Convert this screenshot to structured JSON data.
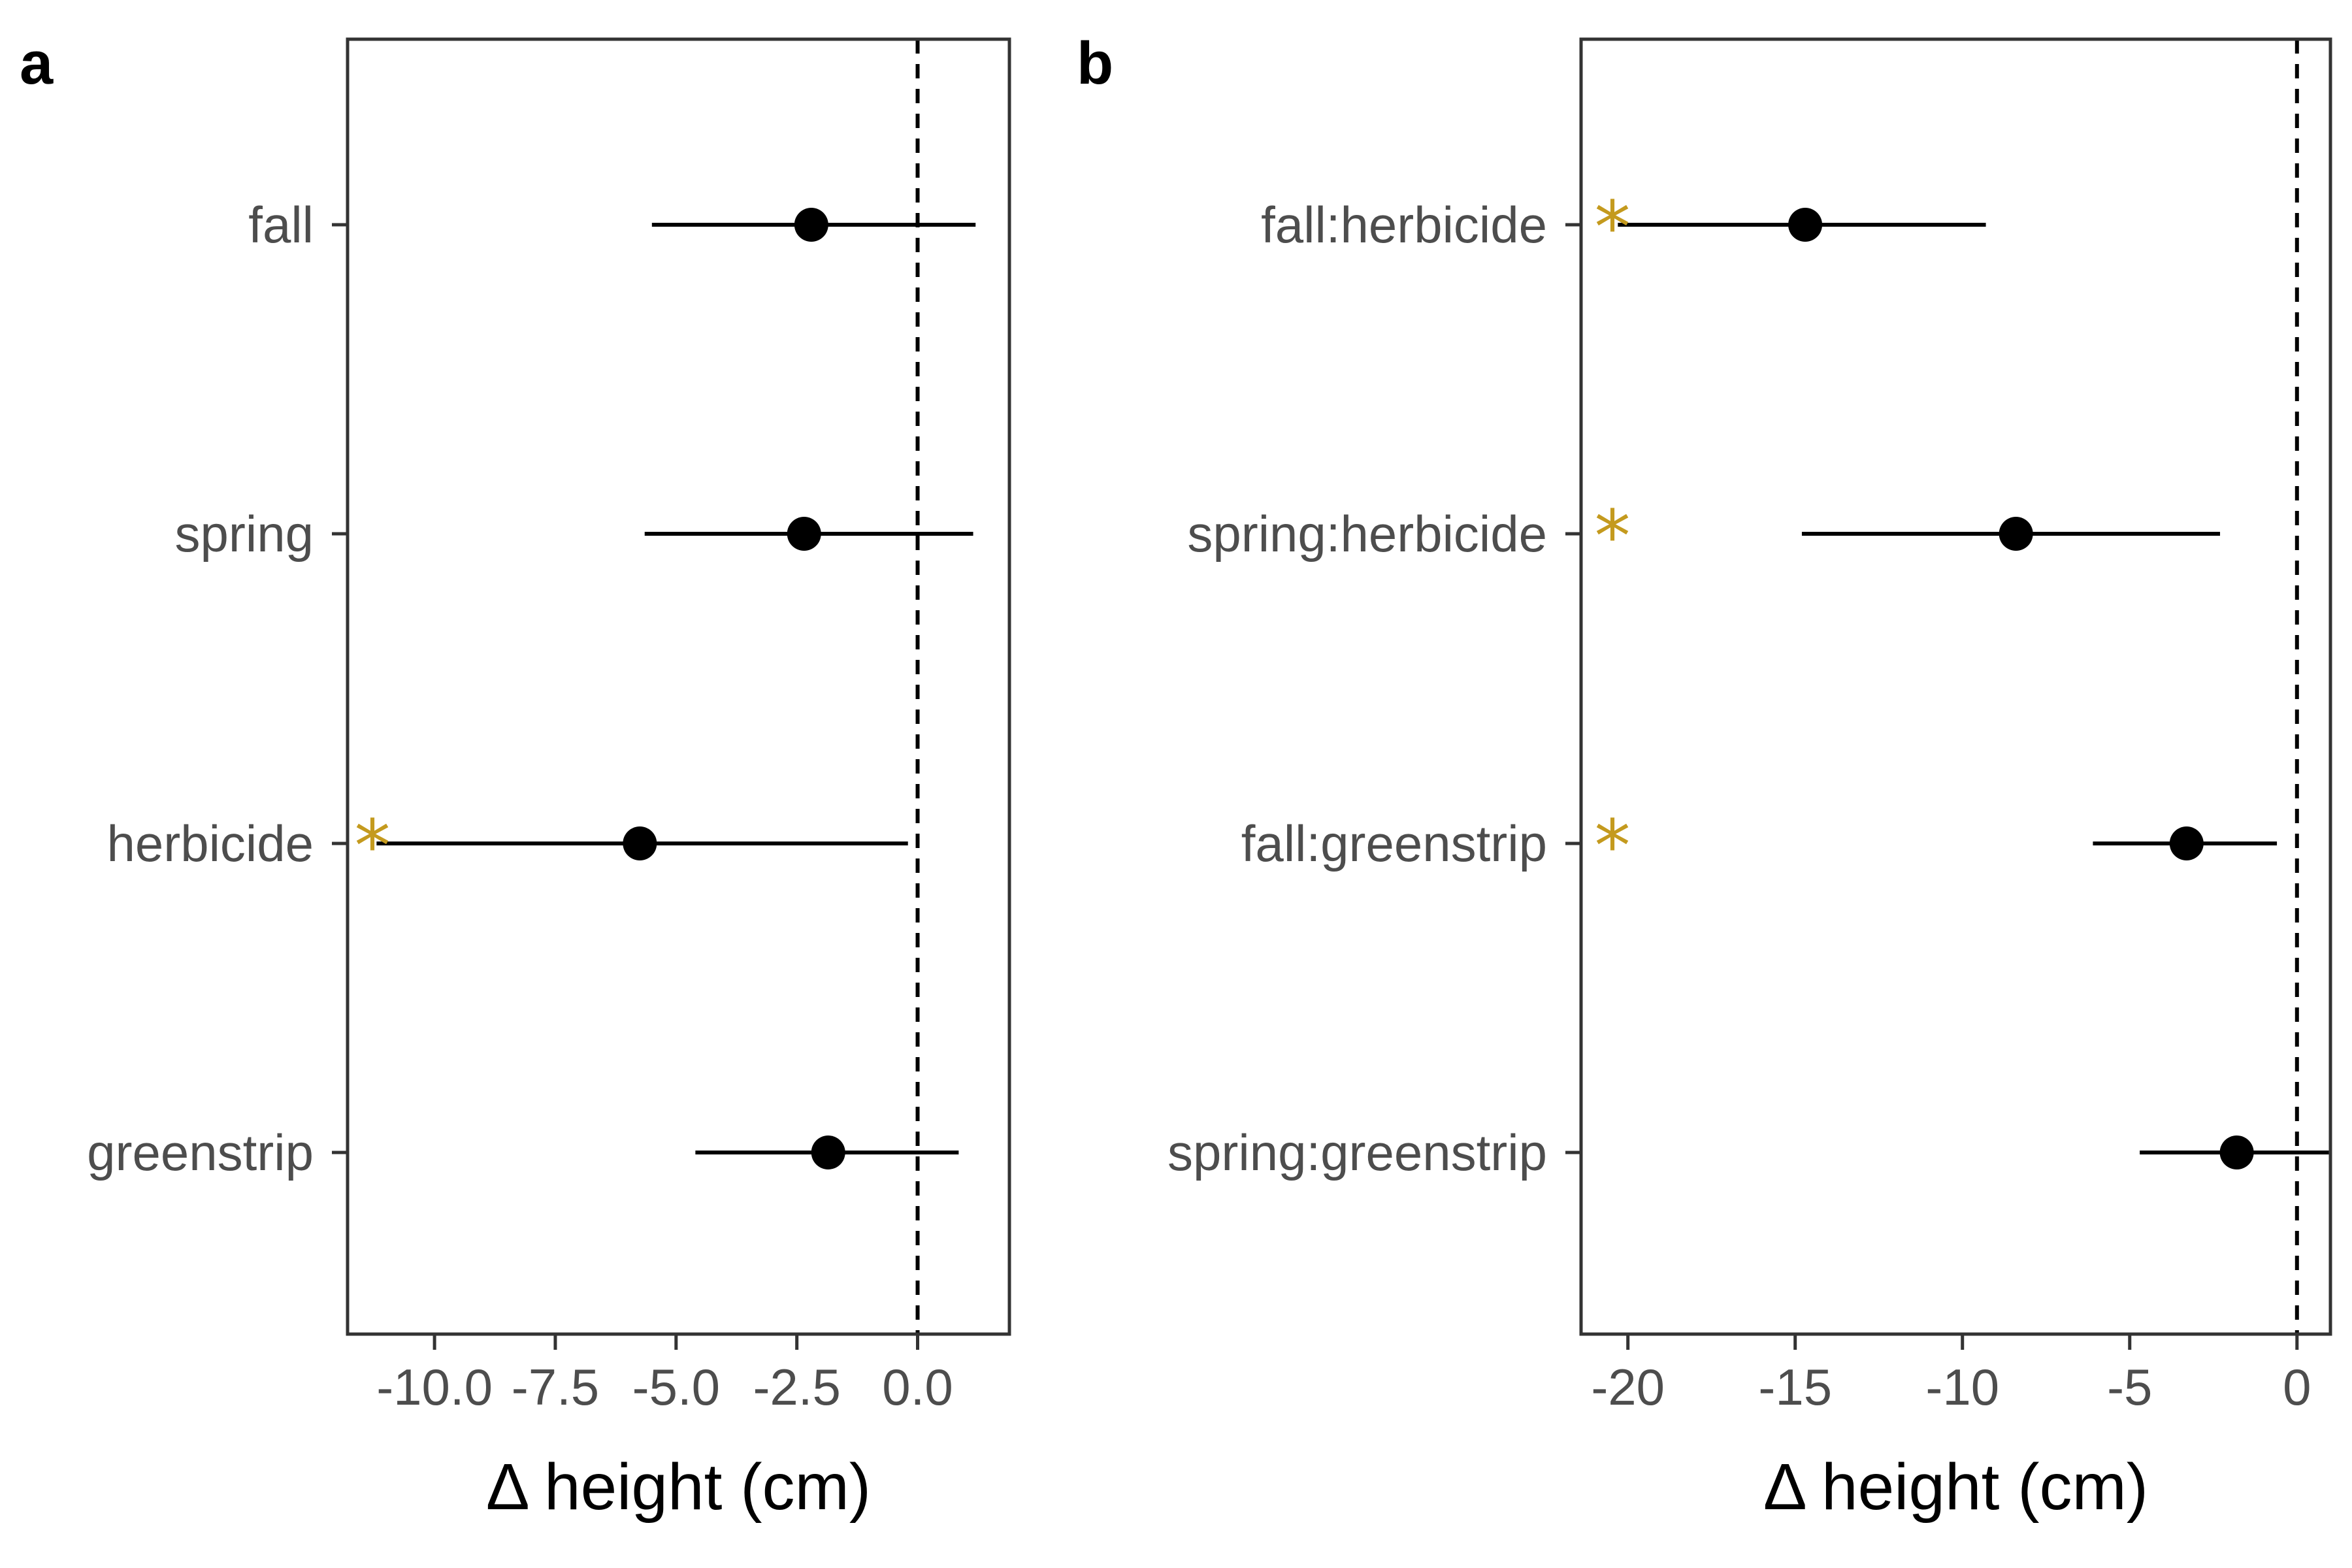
{
  "chart_data": [
    {
      "type": "dot-and-whisker",
      "panel_label": "a",
      "xlabel": "Δ height (cm)",
      "ylabel": "",
      "xlim": [
        -11.8,
        1.9
      ],
      "xticks": [
        -10.0,
        -7.5,
        -5.0,
        -2.5,
        0.0
      ],
      "xtick_labels": [
        "-10.0",
        "-7.5",
        "-5.0",
        "-2.5",
        "0.0"
      ],
      "reference_line_x": 0,
      "grid": false,
      "categories": [
        "fall",
        "spring",
        "herbicide",
        "greenstrip"
      ],
      "estimates": [
        -2.2,
        -2.35,
        -5.75,
        -1.85
      ],
      "ci_low": [
        -5.5,
        -5.65,
        -11.2,
        -4.6
      ],
      "ci_high": [
        1.2,
        1.15,
        -0.2,
        0.85
      ],
      "significant": [
        false,
        false,
        true,
        false
      ],
      "significance_marker": "*"
    },
    {
      "type": "dot-and-whisker",
      "panel_label": "b",
      "xlabel": "Δ height (cm)",
      "ylabel": "",
      "xlim": [
        -21.4,
        1.0
      ],
      "xticks": [
        -20,
        -15,
        -10,
        -5,
        0
      ],
      "xtick_labels": [
        "-20",
        "-15",
        "-10",
        "-5",
        "0"
      ],
      "reference_line_x": 0,
      "grid": false,
      "categories": [
        "fall:herbicide",
        "spring:herbicide",
        "fall:greenstrip",
        "spring:greenstrip"
      ],
      "estimates": [
        -14.7,
        -8.4,
        -3.3,
        -1.8
      ],
      "ci_low": [
        -20.3,
        -14.8,
        -6.1,
        -4.7
      ],
      "ci_high": [
        -9.3,
        -2.3,
        -0.6,
        0.95
      ],
      "significant": [
        true,
        true,
        true,
        false
      ],
      "significance_marker": "*"
    }
  ],
  "colors": {
    "point": "#000000",
    "whisker": "#000000",
    "significance": "#c49a1e",
    "panel_border": "#333333",
    "tick_label": "#4d4d4d"
  }
}
